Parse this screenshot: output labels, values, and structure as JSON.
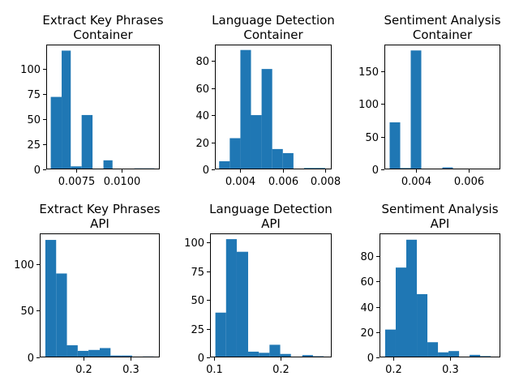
{
  "chart_data": [
    {
      "type": "bar",
      "title_lines": [
        "Extract Key Phrases",
        "Container"
      ],
      "color": "#1f77b4",
      "xlim": [
        0.00585,
        0.0121
      ],
      "ylim": [
        0,
        124
      ],
      "xticks": [
        0.0075,
        0.01
      ],
      "xtick_labels": [
        "0.0075",
        "0.0100"
      ],
      "yticks": [
        0,
        25,
        50,
        75,
        100
      ],
      "ytick_labels": [
        "0",
        "25",
        "50",
        "75",
        "100"
      ],
      "bin_edges": [
        0.0061,
        0.0067,
        0.0072,
        0.0078,
        0.0084,
        0.009,
        0.0095,
        0.0101,
        0.0107,
        0.0112,
        0.0118
      ],
      "counts": [
        72,
        118,
        3,
        54,
        0,
        9,
        0,
        0,
        1,
        1
      ]
    },
    {
      "type": "bar",
      "title_lines": [
        "Language Detection",
        "Container"
      ],
      "color": "#1f77b4",
      "xlim": [
        0.0028,
        0.0083
      ],
      "ylim": [
        0,
        92
      ],
      "xticks": [
        0.004,
        0.006,
        0.008
      ],
      "xtick_labels": [
        "0.004",
        "0.006",
        "0.008"
      ],
      "yticks": [
        0,
        20,
        40,
        60,
        80
      ],
      "ytick_labels": [
        "0",
        "20",
        "40",
        "60",
        "80"
      ],
      "bin_edges": [
        0.003,
        0.0035,
        0.004,
        0.0045,
        0.005,
        0.0055,
        0.006,
        0.0065,
        0.007,
        0.0075,
        0.008
      ],
      "counts": [
        6,
        23,
        88,
        40,
        74,
        15,
        12,
        0,
        1,
        1
      ]
    },
    {
      "type": "bar",
      "title_lines": [
        "Sentiment Analysis",
        "Container"
      ],
      "color": "#1f77b4",
      "xlim": [
        0.0028,
        0.0072
      ],
      "ylim": [
        0,
        191
      ],
      "xticks": [
        0.004,
        0.006
      ],
      "xtick_labels": [
        "0.004",
        "0.006"
      ],
      "yticks": [
        0,
        50,
        100,
        150
      ],
      "ytick_labels": [
        "0",
        "50",
        "100",
        "150"
      ],
      "bin_edges": [
        0.003,
        0.0034,
        0.0038,
        0.0042,
        0.0046,
        0.005,
        0.0054,
        0.0058,
        0.0062,
        0.0066,
        0.007
      ],
      "counts": [
        72,
        2,
        182,
        1,
        0,
        3,
        0,
        0,
        0,
        1
      ]
    },
    {
      "type": "bar",
      "title_lines": [
        "Extract Key Phrases",
        "API"
      ],
      "color": "#1f77b4",
      "xlim": [
        0.107,
        0.363
      ],
      "ylim": [
        0,
        133
      ],
      "xticks": [
        0.2,
        0.3
      ],
      "xtick_labels": [
        "0.2",
        "0.3"
      ],
      "yticks": [
        0,
        50,
        100
      ],
      "ytick_labels": [
        "0",
        "50",
        "100"
      ],
      "bin_edges": [
        0.119,
        0.142,
        0.165,
        0.188,
        0.211,
        0.235,
        0.258,
        0.281,
        0.304,
        0.327,
        0.35
      ],
      "counts": [
        126,
        90,
        13,
        7,
        8,
        10,
        2,
        2,
        0,
        1
      ]
    },
    {
      "type": "bar",
      "title_lines": [
        "Language Detection",
        "API"
      ],
      "color": "#1f77b4",
      "xlim": [
        0.094,
        0.276
      ],
      "ylim": [
        0,
        108
      ],
      "xticks": [
        0.1,
        0.2
      ],
      "xtick_labels": [
        "0.1",
        "0.2"
      ],
      "yticks": [
        0,
        25,
        50,
        75,
        100
      ],
      "ytick_labels": [
        "0",
        "25",
        "50",
        "75",
        "100"
      ],
      "bin_edges": [
        0.102,
        0.118,
        0.134,
        0.151,
        0.167,
        0.183,
        0.199,
        0.215,
        0.232,
        0.248,
        0.264
      ],
      "counts": [
        39,
        103,
        92,
        5,
        4,
        11,
        3,
        0,
        2,
        1
      ]
    },
    {
      "type": "bar",
      "title_lines": [
        "Sentiment Analysis",
        "API"
      ],
      "color": "#1f77b4",
      "xlim": [
        0.175,
        0.389
      ],
      "ylim": [
        0,
        98
      ],
      "xticks": [
        0.2,
        0.3
      ],
      "xtick_labels": [
        "0.2",
        "0.3"
      ],
      "yticks": [
        0,
        20,
        40,
        60,
        80
      ],
      "ytick_labels": [
        "0",
        "20",
        "40",
        "60",
        "80"
      ],
      "bin_edges": [
        0.185,
        0.2037,
        0.2224,
        0.2411,
        0.2598,
        0.2785,
        0.2972,
        0.3159,
        0.3346,
        0.3533,
        0.372
      ],
      "counts": [
        22,
        71,
        93,
        50,
        12,
        4,
        5,
        0,
        2,
        1
      ]
    }
  ]
}
